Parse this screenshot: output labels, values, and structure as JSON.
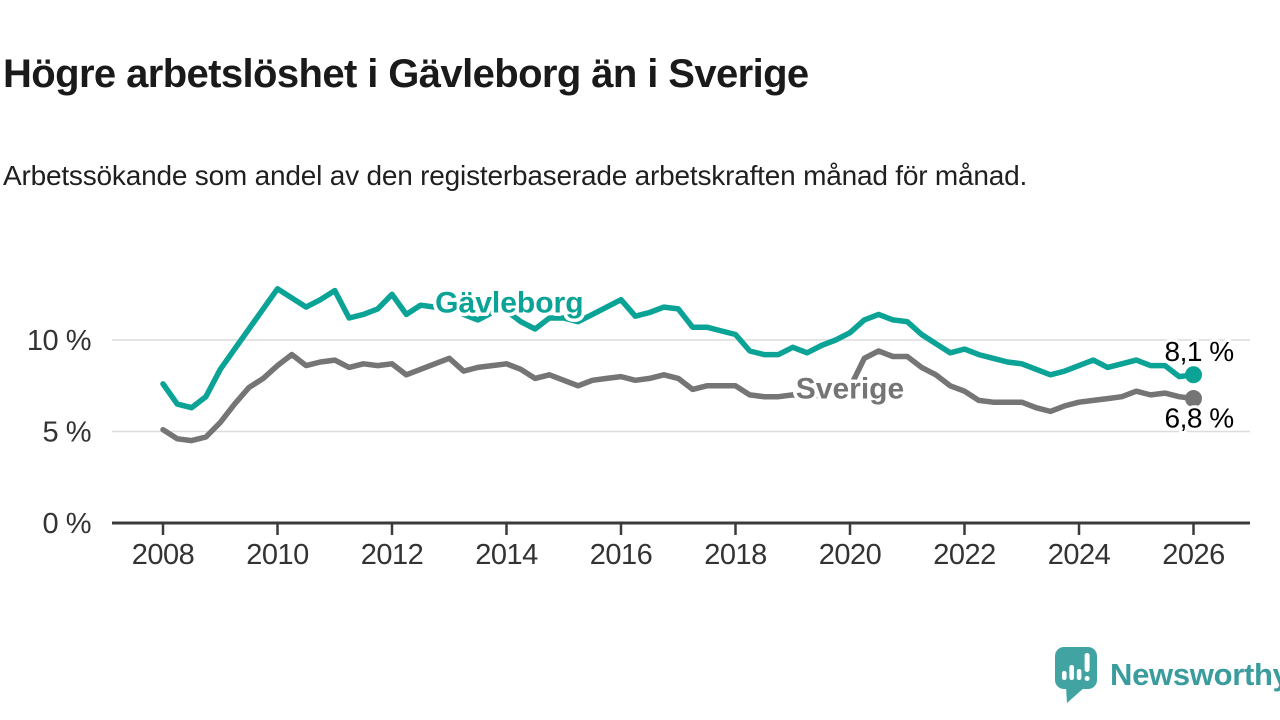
{
  "header": {
    "title": "Högre arbetslöshet i Gävleborg än i Sverige",
    "subtitle": "Arbetssökande som andel av den registerbaserade arbetskraften månad för månad."
  },
  "colors": {
    "gavleborg_line": "#0aa396",
    "sverige_line": "#757575",
    "grid": "#dcdcdc",
    "axis": "#3b3b3b",
    "tick_text": "#333333",
    "brand_teal": "#3b9c9d",
    "logo_bubble": "#41a4a3"
  },
  "chart_data": {
    "type": "line",
    "title": "Högre arbetslöshet i Gävleborg än i Sverige",
    "xlabel": "",
    "ylabel": "",
    "x_unit": "decimal_year",
    "resolution_note": "monthly series shown; values estimated quarterly from plot",
    "xlim": [
      2007.1,
      2027.0
    ],
    "ylim": [
      0,
      14
    ],
    "grid": "horizontal",
    "y_ticks": [
      {
        "value": 0,
        "label": "0 %"
      },
      {
        "value": 5,
        "label": "5 %"
      },
      {
        "value": 10,
        "label": "10 %"
      }
    ],
    "x_ticks": [
      "2008",
      "2010",
      "2012",
      "2014",
      "2016",
      "2018",
      "2020",
      "2022",
      "2024",
      "2026"
    ],
    "series": [
      {
        "name": "Gävleborg",
        "color": "#0aa396",
        "x_start": 2008.0,
        "x_step": 0.25,
        "values": [
          7.6,
          6.5,
          6.3,
          6.9,
          8.4,
          9.5,
          10.6,
          11.7,
          12.8,
          12.3,
          11.8,
          12.2,
          12.7,
          11.2,
          11.4,
          11.7,
          12.5,
          11.4,
          11.9,
          11.8,
          12.5,
          11.4,
          11.1,
          11.5,
          11.6,
          11.0,
          10.6,
          11.2,
          11.2,
          11.0,
          11.4,
          11.8,
          12.2,
          11.3,
          11.5,
          11.8,
          11.7,
          10.7,
          10.7,
          10.5,
          10.3,
          9.4,
          9.2,
          9.2,
          9.6,
          9.3,
          9.7,
          10.0,
          10.4,
          11.1,
          11.4,
          11.1,
          11.0,
          10.3,
          9.8,
          9.3,
          9.5,
          9.2,
          9.0,
          8.8,
          8.7,
          8.4,
          8.1,
          8.3,
          8.6,
          8.9,
          8.5,
          8.7,
          8.9,
          8.6,
          8.6,
          8.0,
          8.1
        ],
        "last_value": 8.1,
        "end_label": "8,1 %"
      },
      {
        "name": "Sverige",
        "color": "#757575",
        "x_start": 2008.0,
        "x_step": 0.25,
        "values": [
          5.1,
          4.6,
          4.5,
          4.7,
          5.5,
          6.5,
          7.4,
          7.9,
          8.6,
          9.2,
          8.6,
          8.8,
          8.9,
          8.5,
          8.7,
          8.6,
          8.7,
          8.1,
          8.4,
          8.7,
          9.0,
          8.3,
          8.5,
          8.6,
          8.7,
          8.4,
          7.9,
          8.1,
          7.8,
          7.5,
          7.8,
          7.9,
          8.0,
          7.8,
          7.9,
          8.1,
          7.9,
          7.3,
          7.5,
          7.5,
          7.5,
          7.0,
          6.9,
          6.9,
          7.0,
          6.9,
          7.0,
          7.1,
          7.4,
          9.0,
          9.4,
          9.1,
          9.1,
          8.5,
          8.1,
          7.5,
          7.2,
          6.7,
          6.6,
          6.6,
          6.6,
          6.3,
          6.1,
          6.4,
          6.6,
          6.7,
          6.8,
          6.9,
          7.2,
          7.0,
          7.1,
          6.9,
          6.8
        ],
        "last_value": 6.8,
        "end_label": "6,8 %"
      }
    ],
    "annotations": [
      {
        "text": "Gävleborg",
        "x": 2014.05,
        "y": 12.05,
        "color": "#0aa396"
      },
      {
        "text": "Sverige",
        "x": 2020.0,
        "y": 7.35,
        "color": "#757575"
      }
    ],
    "legend_position": "inline-labels"
  },
  "footer": {
    "brand": "Newsworthy"
  }
}
